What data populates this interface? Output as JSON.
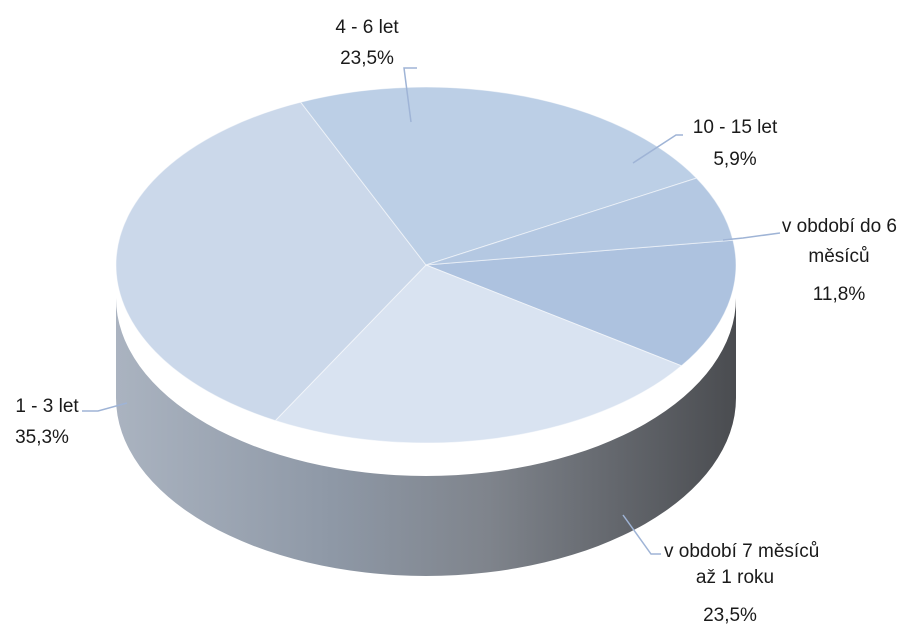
{
  "chart_data": {
    "type": "pie",
    "style": "3d",
    "slices": [
      {
        "label": [
          "v období do 6",
          "měsíců"
        ],
        "value_label": "11,8%",
        "value": 11.8,
        "color": "#adc2df"
      },
      {
        "label": [
          "v období 7 měsíců",
          "až 1 roku"
        ],
        "value_label": "23,5%",
        "value": 23.5,
        "color": "#d9e3f1"
      },
      {
        "label": [
          "1 - 3 let"
        ],
        "value_label": "35,3%",
        "value": 35.3,
        "color": "#cbd8ea"
      },
      {
        "label": [
          "4 - 6 let"
        ],
        "value_label": "23,5%",
        "value": 23.5,
        "color": "#bccfe6"
      },
      {
        "label": [
          "10 - 15 let"
        ],
        "value_label": "5,9%",
        "value": 5.9,
        "color": "#b4c8e2"
      }
    ],
    "legend": "none"
  }
}
